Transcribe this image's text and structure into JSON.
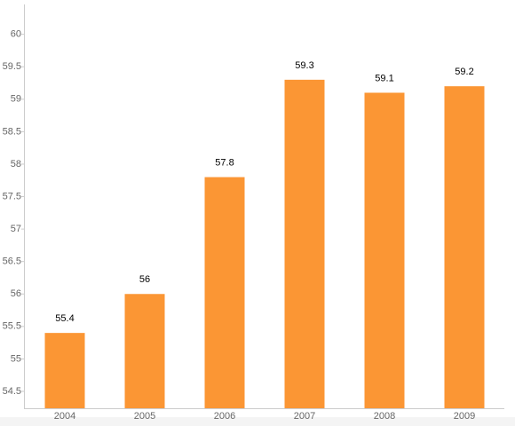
{
  "chart_data": {
    "type": "bar",
    "categories": [
      "2004",
      "2005",
      "2006",
      "2007",
      "2008",
      "2009"
    ],
    "values": [
      55.4,
      56,
      57.8,
      59.3,
      59.1,
      59.2
    ],
    "color": "#fb9634",
    "ylim": [
      54.24,
      60.46
    ],
    "yticks": [
      54.5,
      55,
      55.5,
      56,
      56.5,
      57,
      57.5,
      58,
      58.5,
      59,
      59.5,
      60
    ],
    "grid": false
  }
}
